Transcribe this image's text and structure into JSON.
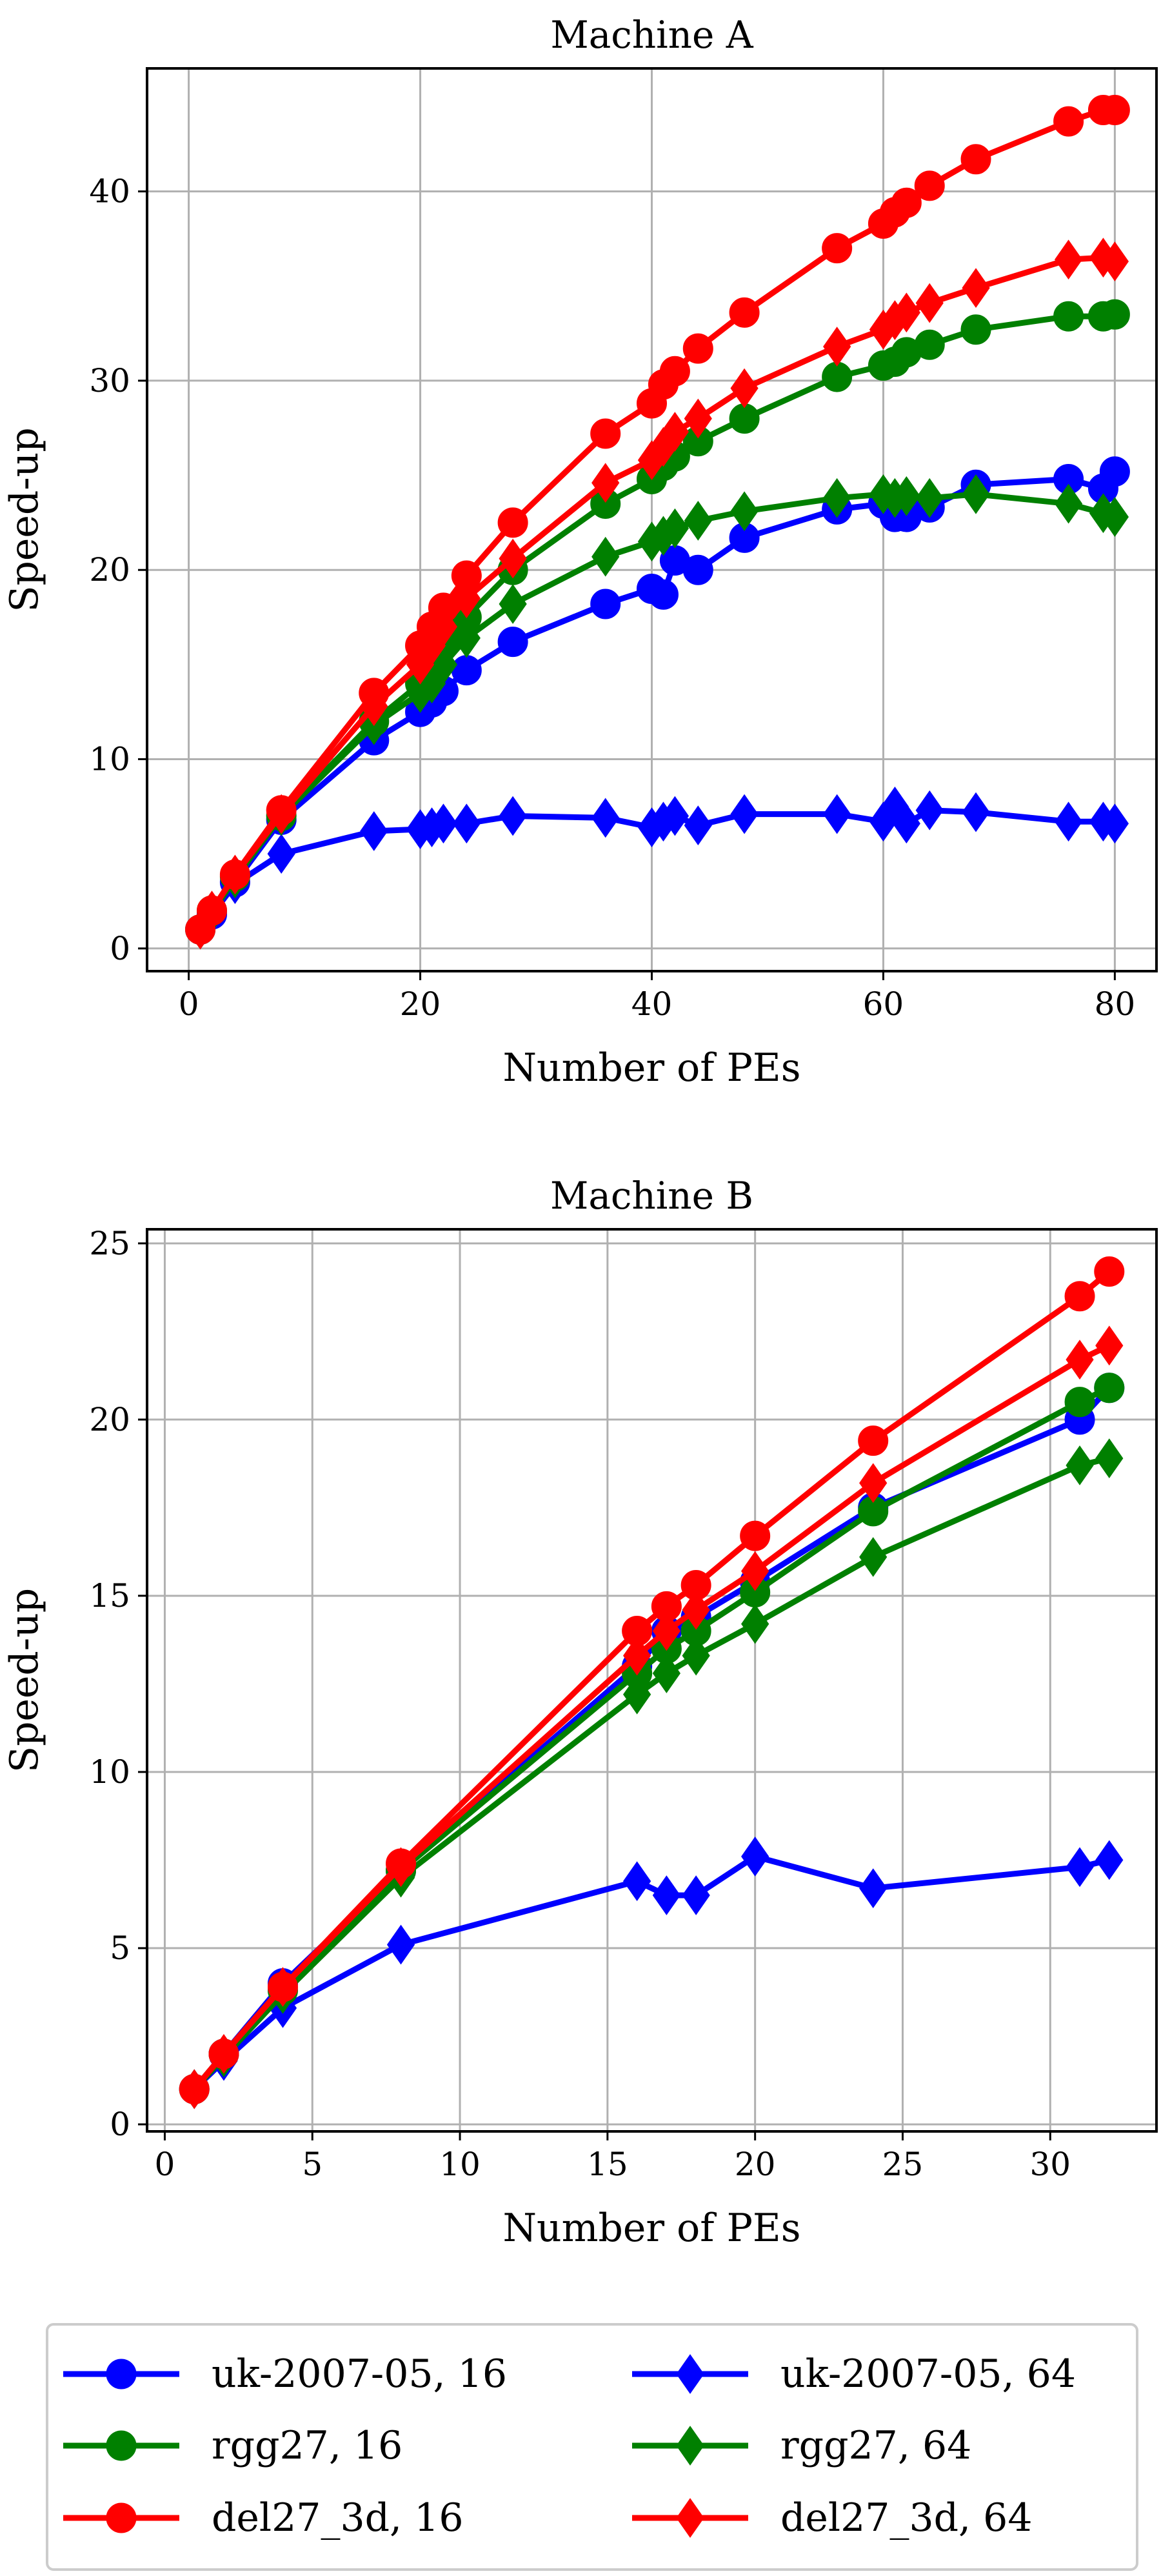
{
  "chart_data": [
    {
      "type": "line",
      "title": "Machine A",
      "xlabel": "Number of PEs",
      "ylabel": "Speed-up",
      "xlim": [
        -3.6,
        83.6
      ],
      "ylim": [
        -1.2,
        46.5
      ],
      "xticks": [
        0,
        20,
        40,
        60,
        80
      ],
      "yticks": [
        0,
        10,
        20,
        30,
        40
      ],
      "grid": true,
      "series": [
        {
          "name": "uk-2007-05, 16",
          "color": "#0000ff",
          "marker": "circle",
          "points": [
            [
              1,
              1
            ],
            [
              2,
              1.8
            ],
            [
              4,
              3.5
            ],
            [
              8,
              6.8
            ],
            [
              16,
              11
            ],
            [
              20,
              12.5
            ],
            [
              21,
              13
            ],
            [
              22,
              13.6
            ],
            [
              24,
              14.7
            ],
            [
              28,
              16.2
            ],
            [
              36,
              18.2
            ],
            [
              40,
              19
            ],
            [
              41,
              18.7
            ],
            [
              42,
              20.5
            ],
            [
              44,
              20
            ],
            [
              48,
              21.7
            ],
            [
              56,
              23.2
            ],
            [
              60,
              23.5
            ],
            [
              61,
              22.8
            ],
            [
              62,
              22.8
            ],
            [
              64,
              23.3
            ],
            [
              68,
              24.5
            ],
            [
              76,
              24.8
            ],
            [
              79,
              24.3
            ],
            [
              80,
              25.2
            ]
          ]
        },
        {
          "name": "uk-2007-05, 64",
          "color": "#0000ff",
          "marker": "diamond",
          "points": [
            [
              1,
              1
            ],
            [
              2,
              1.8
            ],
            [
              4,
              3.4
            ],
            [
              8,
              5
            ],
            [
              16,
              6.2
            ],
            [
              20,
              6.3
            ],
            [
              21,
              6.4
            ],
            [
              22,
              6.6
            ],
            [
              24,
              6.6
            ],
            [
              28,
              7
            ],
            [
              36,
              6.9
            ],
            [
              40,
              6.4
            ],
            [
              41,
              6.7
            ],
            [
              42,
              7
            ],
            [
              44,
              6.5
            ],
            [
              48,
              7.1
            ],
            [
              56,
              7.1
            ],
            [
              60,
              6.7
            ],
            [
              61,
              7.5
            ],
            [
              62,
              6.6
            ],
            [
              64,
              7.3
            ],
            [
              68,
              7.2
            ],
            [
              76,
              6.7
            ],
            [
              79,
              6.7
            ],
            [
              80,
              6.6
            ]
          ]
        },
        {
          "name": "rgg27, 16",
          "color": "#008000",
          "marker": "circle",
          "points": [
            [
              1,
              1
            ],
            [
              2,
              2
            ],
            [
              4,
              3.8
            ],
            [
              8,
              7
            ],
            [
              16,
              12
            ],
            [
              20,
              14
            ],
            [
              21,
              15
            ],
            [
              22,
              16
            ],
            [
              24,
              17.5
            ],
            [
              28,
              20
            ],
            [
              36,
              23.5
            ],
            [
              40,
              24.8
            ],
            [
              41,
              25.5
            ],
            [
              42,
              26
            ],
            [
              44,
              26.8
            ],
            [
              48,
              28
            ],
            [
              56,
              30.2
            ],
            [
              60,
              30.8
            ],
            [
              61,
              31
            ],
            [
              62,
              31.5
            ],
            [
              64,
              31.9
            ],
            [
              68,
              32.7
            ],
            [
              76,
              33.4
            ],
            [
              79,
              33.4
            ],
            [
              80,
              33.5
            ]
          ]
        },
        {
          "name": "rgg27, 64",
          "color": "#008000",
          "marker": "diamond",
          "points": [
            [
              1,
              1
            ],
            [
              2,
              1.9
            ],
            [
              4,
              3.7
            ],
            [
              8,
              7
            ],
            [
              16,
              11.8
            ],
            [
              20,
              13.5
            ],
            [
              21,
              14
            ],
            [
              22,
              15
            ],
            [
              24,
              16.4
            ],
            [
              28,
              18.2
            ],
            [
              36,
              20.7
            ],
            [
              40,
              21.5
            ],
            [
              41,
              21.8
            ],
            [
              42,
              22.2
            ],
            [
              44,
              22.6
            ],
            [
              48,
              23.1
            ],
            [
              56,
              23.8
            ],
            [
              60,
              24
            ],
            [
              61,
              23.8
            ],
            [
              62,
              23.9
            ],
            [
              64,
              23.8
            ],
            [
              68,
              24
            ],
            [
              76,
              23.5
            ],
            [
              79,
              23
            ],
            [
              80,
              22.8
            ]
          ]
        },
        {
          "name": "del27_3d, 16",
          "color": "#ff0000",
          "marker": "circle",
          "points": [
            [
              1,
              1
            ],
            [
              2,
              2
            ],
            [
              4,
              3.9
            ],
            [
              8,
              7.3
            ],
            [
              16,
              13.5
            ],
            [
              20,
              16
            ],
            [
              21,
              17
            ],
            [
              22,
              18
            ],
            [
              24,
              19.7
            ],
            [
              28,
              22.5
            ],
            [
              36,
              27.2
            ],
            [
              40,
              28.8
            ],
            [
              41,
              29.8
            ],
            [
              42,
              30.5
            ],
            [
              44,
              31.7
            ],
            [
              48,
              33.6
            ],
            [
              56,
              37
            ],
            [
              60,
              38.3
            ],
            [
              61,
              38.9
            ],
            [
              62,
              39.4
            ],
            [
              64,
              40.3
            ],
            [
              68,
              41.7
            ],
            [
              76,
              43.7
            ],
            [
              79,
              44.3
            ],
            [
              80,
              44.3
            ]
          ]
        },
        {
          "name": "del27_3d, 64",
          "color": "#ff0000",
          "marker": "diamond",
          "points": [
            [
              1,
              1
            ],
            [
              2,
              2
            ],
            [
              4,
              3.9
            ],
            [
              8,
              7.1
            ],
            [
              16,
              12.8
            ],
            [
              20,
              15
            ],
            [
              21,
              16
            ],
            [
              22,
              17
            ],
            [
              24,
              18.5
            ],
            [
              28,
              20.6
            ],
            [
              36,
              24.6
            ],
            [
              40,
              25.8
            ],
            [
              41,
              26.5
            ],
            [
              42,
              27.3
            ],
            [
              44,
              28
            ],
            [
              48,
              29.6
            ],
            [
              56,
              31.8
            ],
            [
              60,
              32.7
            ],
            [
              61,
              33.2
            ],
            [
              62,
              33.6
            ],
            [
              64,
              34.1
            ],
            [
              68,
              34.9
            ],
            [
              76,
              36.4
            ],
            [
              79,
              36.5
            ],
            [
              80,
              36.3
            ]
          ]
        }
      ]
    },
    {
      "type": "line",
      "title": "Machine B",
      "xlabel": "Number of PEs",
      "ylabel": "Speed-up",
      "xlim": [
        -0.6,
        33.6
      ],
      "ylim": [
        -0.2,
        25.4
      ],
      "xticks": [
        0,
        5,
        10,
        15,
        20,
        25,
        30
      ],
      "yticks": [
        0,
        5,
        10,
        15,
        20,
        25
      ],
      "grid": true,
      "series": [
        {
          "name": "uk-2007-05, 16",
          "color": "#0000ff",
          "marker": "circle",
          "points": [
            [
              1,
              1
            ],
            [
              2,
              2
            ],
            [
              4,
              4
            ],
            [
              8,
              7.2
            ],
            [
              16,
              13
            ],
            [
              17,
              14
            ],
            [
              18,
              14.4
            ],
            [
              20,
              15.4
            ],
            [
              24,
              17.5
            ],
            [
              31,
              20
            ],
            [
              32,
              20.9
            ]
          ]
        },
        {
          "name": "uk-2007-05, 64",
          "color": "#0000ff",
          "marker": "diamond",
          "points": [
            [
              1,
              1
            ],
            [
              2,
              1.8
            ],
            [
              4,
              3.3
            ],
            [
              8,
              5.1
            ],
            [
              16,
              6.9
            ],
            [
              17,
              6.5
            ],
            [
              18,
              6.5
            ],
            [
              20,
              7.6
            ],
            [
              24,
              6.7
            ],
            [
              31,
              7.3
            ],
            [
              32,
              7.5
            ]
          ]
        },
        {
          "name": "rgg27, 16",
          "color": "#008000",
          "marker": "circle",
          "points": [
            [
              1,
              1
            ],
            [
              2,
              2
            ],
            [
              4,
              3.8
            ],
            [
              8,
              7.2
            ],
            [
              16,
              12.8
            ],
            [
              17,
              13.5
            ],
            [
              18,
              14
            ],
            [
              20,
              15.1
            ],
            [
              24,
              17.4
            ],
            [
              31,
              20.5
            ],
            [
              32,
              20.9
            ]
          ]
        },
        {
          "name": "rgg27, 64",
          "color": "#008000",
          "marker": "diamond",
          "points": [
            [
              1,
              1
            ],
            [
              2,
              1.9
            ],
            [
              4,
              3.7
            ],
            [
              8,
              7
            ],
            [
              16,
              12.2
            ],
            [
              17,
              12.8
            ],
            [
              18,
              13.3
            ],
            [
              20,
              14.2
            ],
            [
              24,
              16.1
            ],
            [
              31,
              18.7
            ],
            [
              32,
              18.9
            ]
          ]
        },
        {
          "name": "del27_3d, 16",
          "color": "#ff0000",
          "marker": "circle",
          "points": [
            [
              1,
              1
            ],
            [
              2,
              2
            ],
            [
              4,
              3.9
            ],
            [
              8,
              7.4
            ],
            [
              16,
              14
            ],
            [
              17,
              14.7
            ],
            [
              18,
              15.3
            ],
            [
              20,
              16.7
            ],
            [
              24,
              19.4
            ],
            [
              31,
              23.5
            ],
            [
              32,
              24.2
            ]
          ]
        },
        {
          "name": "del27_3d, 64",
          "color": "#ff0000",
          "marker": "diamond",
          "points": [
            [
              1,
              1
            ],
            [
              2,
              2
            ],
            [
              4,
              3.9
            ],
            [
              8,
              7.3
            ],
            [
              16,
              13.3
            ],
            [
              17,
              14
            ],
            [
              18,
              14.6
            ],
            [
              20,
              15.7
            ],
            [
              24,
              18.2
            ],
            [
              31,
              21.7
            ],
            [
              32,
              22.1
            ]
          ]
        }
      ]
    }
  ],
  "legend": {
    "placement": "bottom",
    "entries": [
      {
        "label": "uk-2007-05, 16",
        "color": "#0000ff",
        "marker": "circle"
      },
      {
        "label": "uk-2007-05, 64",
        "color": "#0000ff",
        "marker": "diamond"
      },
      {
        "label": "rgg27, 16",
        "color": "#008000",
        "marker": "circle"
      },
      {
        "label": "rgg27, 64",
        "color": "#008000",
        "marker": "diamond"
      },
      {
        "label": "del27_3d, 16",
        "color": "#ff0000",
        "marker": "circle"
      },
      {
        "label": "del27_3d, 64",
        "color": "#ff0000",
        "marker": "diamond"
      }
    ]
  }
}
